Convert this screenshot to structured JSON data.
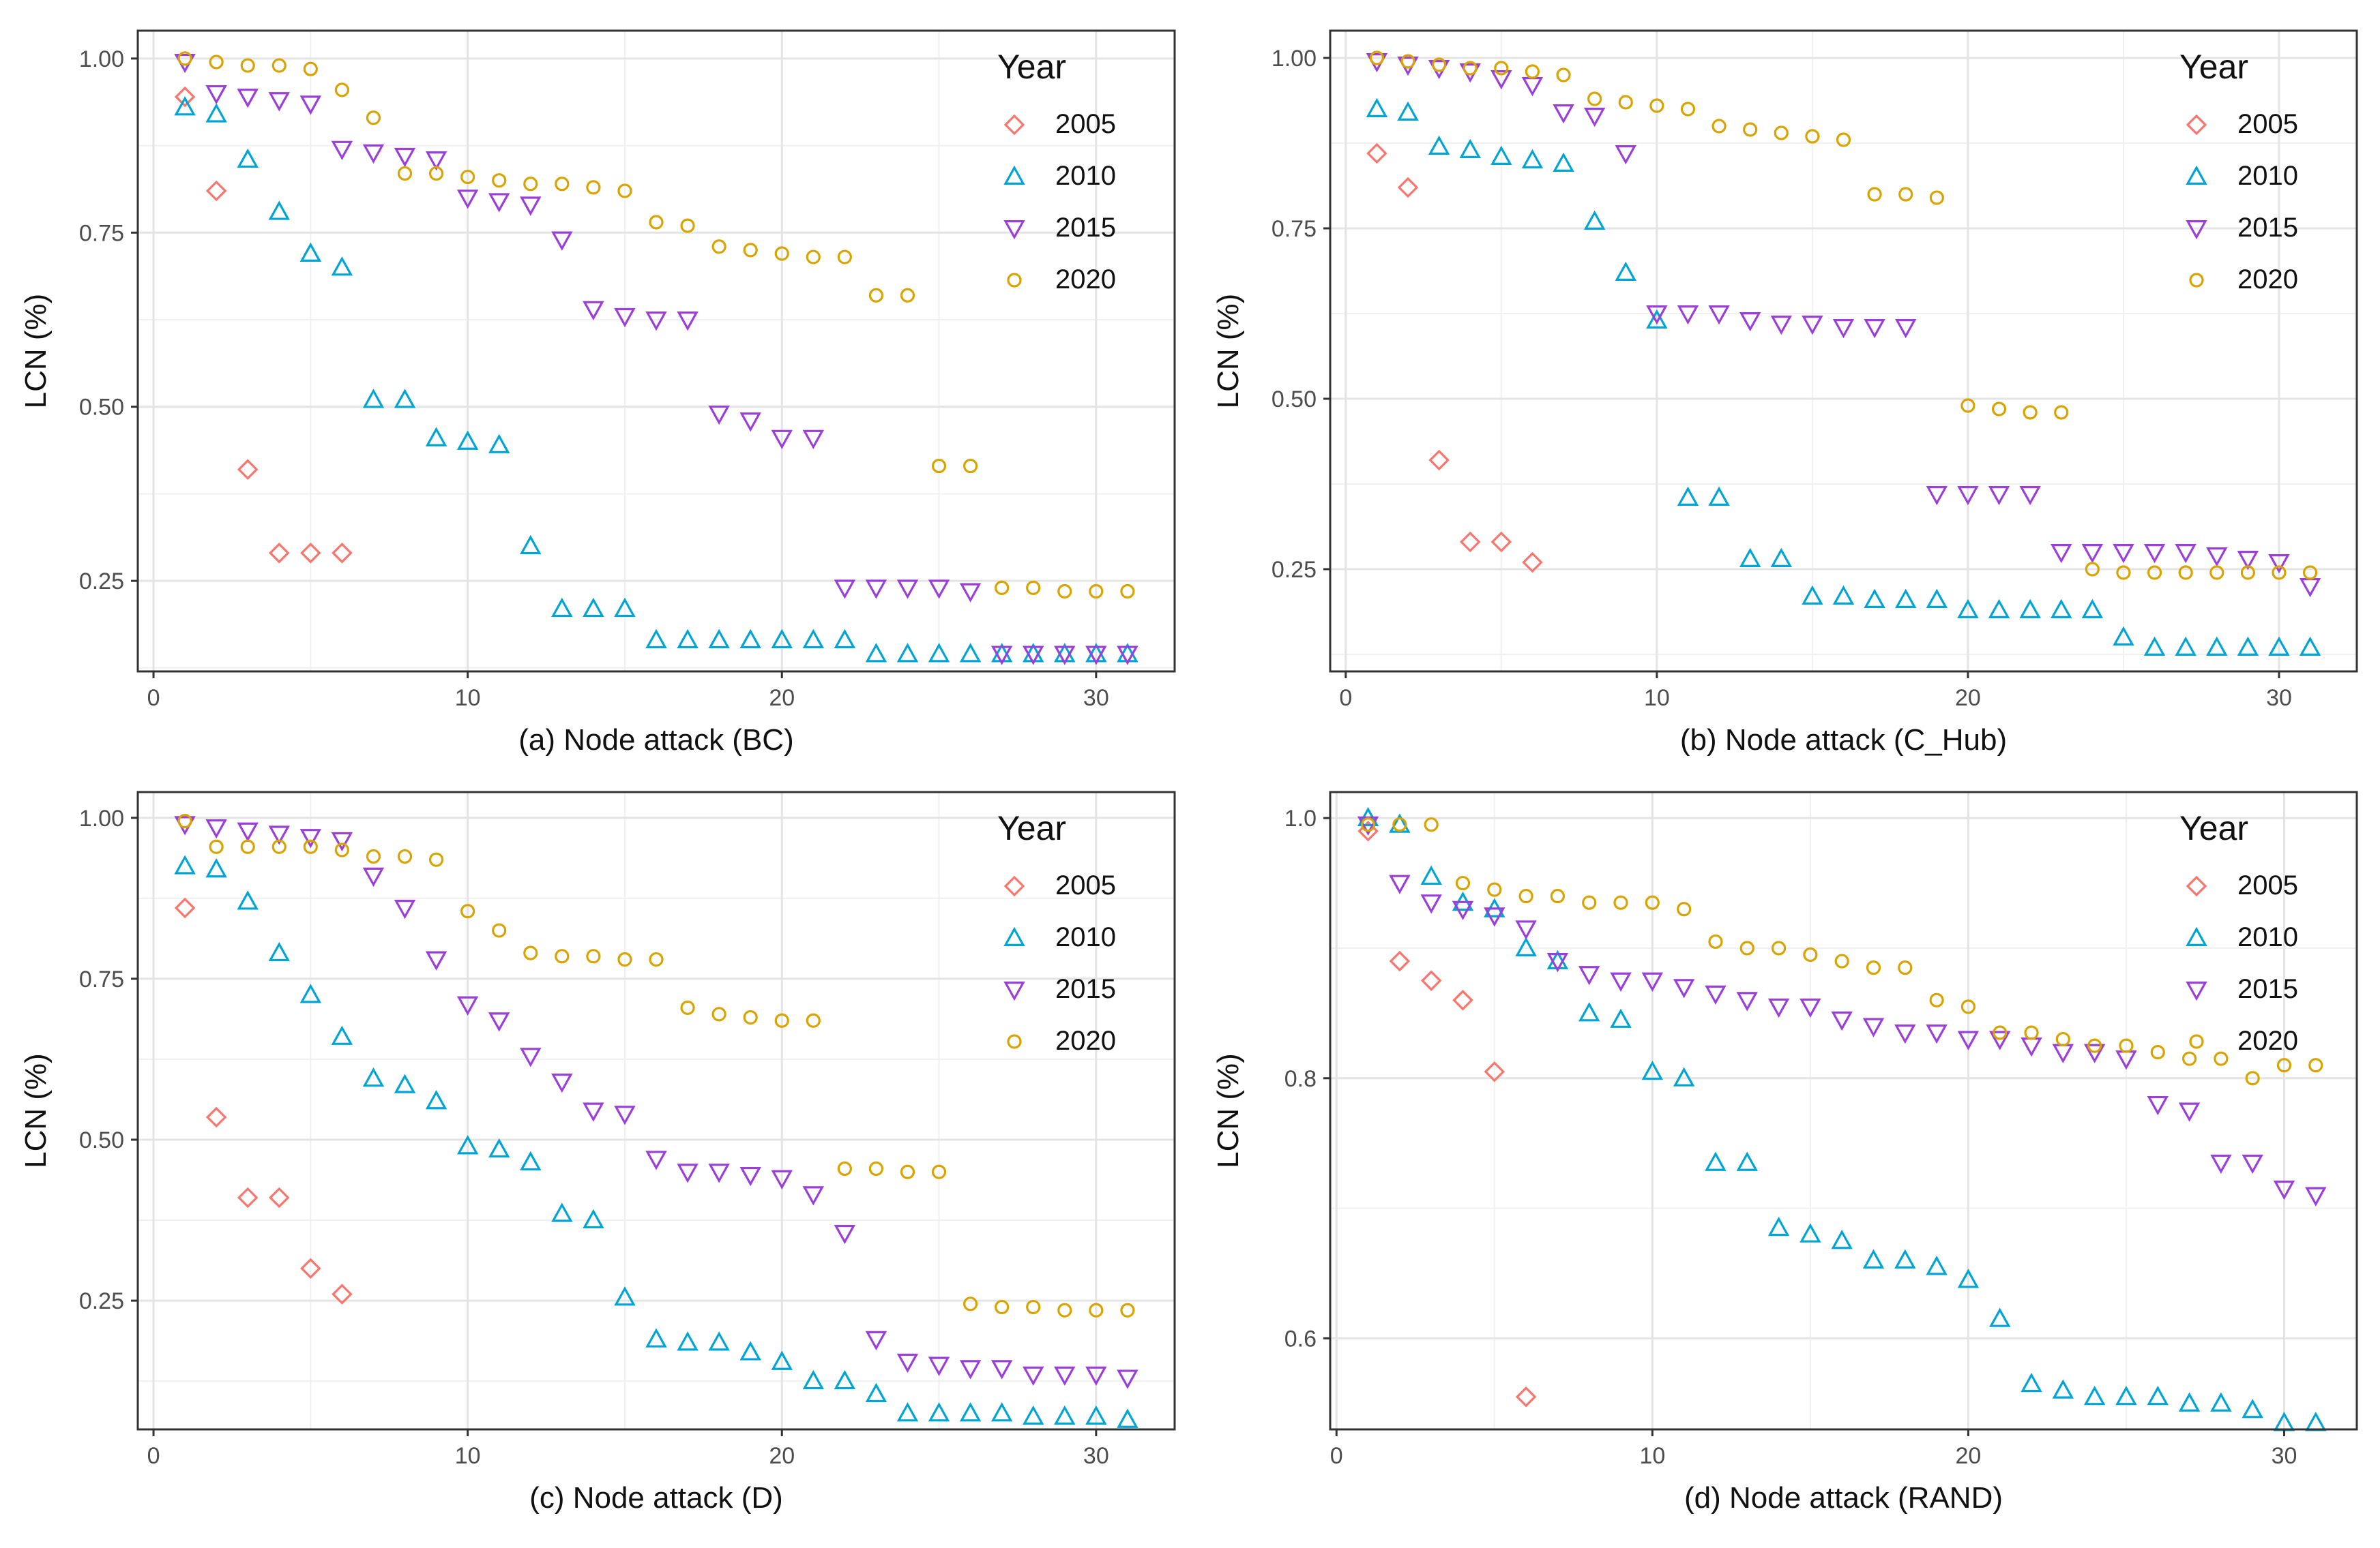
{
  "colors": {
    "2005": "#F8766D",
    "2010": "#00A5D6",
    "2015": "#9A3FD8",
    "2020": "#D9A400"
  },
  "chart_data": [
    {
      "type": "scatter",
      "title": "",
      "xlabel": "(a) Node attack (BC)",
      "ylabel": "LCN (%)",
      "xlim": [
        -0.5,
        32.5
      ],
      "ylim": [
        0.12,
        1.04
      ],
      "xticks": [
        0,
        10,
        20,
        30
      ],
      "xtick_labels": [
        "0",
        "10",
        "20",
        "30"
      ],
      "yticks": [
        0.25,
        0.5,
        0.75,
        1.0
      ],
      "ytick_labels": [
        "0.25",
        "0.50",
        "0.75",
        "1.00"
      ],
      "legend_title": "Year",
      "legend_position": "top-right",
      "series": [
        {
          "name": "2005",
          "shape": "diamond",
          "x": [
            1,
            2,
            3,
            4,
            5,
            6
          ],
          "y": [
            0.945,
            0.81,
            0.41,
            0.29,
            0.29,
            0.29
          ]
        },
        {
          "name": "2010",
          "shape": "triangle-up",
          "x": [
            1,
            2,
            3,
            4,
            5,
            6,
            7,
            8,
            9,
            10,
            11,
            12,
            13,
            14,
            15,
            16,
            17,
            18,
            19,
            20,
            21,
            22,
            23,
            24,
            25,
            26,
            27,
            28,
            29,
            30,
            31
          ],
          "y": [
            0.93,
            0.92,
            0.855,
            0.78,
            0.72,
            0.7,
            0.51,
            0.51,
            0.455,
            0.45,
            0.445,
            0.3,
            0.21,
            0.21,
            0.21,
            0.165,
            0.165,
            0.165,
            0.165,
            0.165,
            0.165,
            0.165,
            0.145,
            0.145,
            0.145,
            0.145,
            0.145,
            0.145,
            0.145,
            0.145,
            0.145
          ]
        },
        {
          "name": "2015",
          "shape": "triangle-down",
          "x": [
            1,
            2,
            3,
            4,
            5,
            6,
            7,
            8,
            9,
            10,
            11,
            12,
            13,
            14,
            15,
            16,
            17,
            18,
            19,
            20,
            21,
            22,
            23,
            24,
            25,
            26,
            27,
            28,
            29,
            30,
            31
          ],
          "y": [
            0.995,
            0.95,
            0.945,
            0.94,
            0.935,
            0.87,
            0.865,
            0.86,
            0.855,
            0.8,
            0.795,
            0.79,
            0.74,
            0.64,
            0.63,
            0.625,
            0.625,
            0.49,
            0.48,
            0.455,
            0.455,
            0.24,
            0.24,
            0.24,
            0.24,
            0.235,
            0.145,
            0.145,
            0.145,
            0.145,
            0.145
          ]
        },
        {
          "name": "2020",
          "shape": "circle",
          "x": [
            1,
            2,
            3,
            4,
            5,
            6,
            7,
            8,
            9,
            10,
            11,
            12,
            13,
            14,
            15,
            16,
            17,
            18,
            19,
            20,
            21,
            22,
            23,
            24,
            25,
            26,
            27,
            28,
            29,
            30,
            31
          ],
          "y": [
            1.0,
            0.995,
            0.99,
            0.99,
            0.985,
            0.955,
            0.915,
            0.835,
            0.835,
            0.83,
            0.825,
            0.82,
            0.82,
            0.815,
            0.81,
            0.765,
            0.76,
            0.73,
            0.725,
            0.72,
            0.715,
            0.715,
            0.66,
            0.66,
            0.415,
            0.415,
            0.24,
            0.24,
            0.235,
            0.235,
            0.235
          ]
        }
      ]
    },
    {
      "type": "scatter",
      "title": "",
      "xlabel": "(b) Node attack (C_Hub)",
      "ylabel": "LCN (%)",
      "xlim": [
        -0.5,
        32.5
      ],
      "ylim": [
        0.1,
        1.04
      ],
      "xticks": [
        0,
        10,
        20,
        30
      ],
      "xtick_labels": [
        "0",
        "10",
        "20",
        "30"
      ],
      "yticks": [
        0.25,
        0.5,
        0.75,
        1.0
      ],
      "ytick_labels": [
        "0.25",
        "0.50",
        "0.75",
        "1.00"
      ],
      "legend_title": "Year",
      "legend_position": "top-right",
      "series": [
        {
          "name": "2005",
          "shape": "diamond",
          "x": [
            1,
            2,
            3,
            4,
            5,
            6
          ],
          "y": [
            0.86,
            0.81,
            0.41,
            0.29,
            0.29,
            0.26
          ]
        },
        {
          "name": "2010",
          "shape": "triangle-up",
          "x": [
            1,
            2,
            3,
            4,
            5,
            6,
            7,
            8,
            9,
            10,
            11,
            12,
            13,
            14,
            15,
            16,
            17,
            18,
            19,
            20,
            21,
            22,
            23,
            24,
            25,
            26,
            27,
            28,
            29,
            30,
            31
          ],
          "y": [
            0.925,
            0.92,
            0.87,
            0.865,
            0.855,
            0.85,
            0.845,
            0.76,
            0.685,
            0.615,
            0.355,
            0.355,
            0.265,
            0.265,
            0.21,
            0.21,
            0.205,
            0.205,
            0.205,
            0.19,
            0.19,
            0.19,
            0.19,
            0.19,
            0.15,
            0.135,
            0.135,
            0.135,
            0.135,
            0.135,
            0.135
          ]
        },
        {
          "name": "2015",
          "shape": "triangle-down",
          "x": [
            1,
            2,
            3,
            4,
            5,
            6,
            7,
            8,
            9,
            10,
            11,
            12,
            13,
            14,
            15,
            16,
            17,
            18,
            19,
            20,
            21,
            22,
            23,
            24,
            25,
            26,
            27,
            28,
            29,
            30,
            31
          ],
          "y": [
            0.995,
            0.99,
            0.985,
            0.98,
            0.97,
            0.96,
            0.92,
            0.915,
            0.86,
            0.625,
            0.625,
            0.625,
            0.615,
            0.61,
            0.61,
            0.605,
            0.605,
            0.605,
            0.36,
            0.36,
            0.36,
            0.36,
            0.275,
            0.275,
            0.275,
            0.275,
            0.275,
            0.27,
            0.265,
            0.26,
            0.225
          ]
        },
        {
          "name": "2020",
          "shape": "circle",
          "x": [
            1,
            2,
            3,
            4,
            5,
            6,
            7,
            8,
            9,
            10,
            11,
            12,
            13,
            14,
            15,
            16,
            17,
            18,
            19,
            20,
            21,
            22,
            23,
            24,
            25,
            26,
            27,
            28,
            29,
            30,
            31
          ],
          "y": [
            1.0,
            0.995,
            0.99,
            0.985,
            0.985,
            0.98,
            0.975,
            0.94,
            0.935,
            0.93,
            0.925,
            0.9,
            0.895,
            0.89,
            0.885,
            0.88,
            0.8,
            0.8,
            0.795,
            0.49,
            0.485,
            0.48,
            0.48,
            0.25,
            0.245,
            0.245,
            0.245,
            0.245,
            0.245,
            0.245,
            0.245
          ]
        }
      ]
    },
    {
      "type": "scatter",
      "title": "",
      "xlabel": "(c) Node attack (D)",
      "ylabel": "LCN (%)",
      "xlim": [
        -0.5,
        32.5
      ],
      "ylim": [
        0.05,
        1.04
      ],
      "xticks": [
        0,
        10,
        20,
        30
      ],
      "xtick_labels": [
        "0",
        "10",
        "20",
        "30"
      ],
      "yticks": [
        0.25,
        0.5,
        0.75,
        1.0
      ],
      "ytick_labels": [
        "0.25",
        "0.50",
        "0.75",
        "1.00"
      ],
      "legend_title": "Year",
      "legend_position": "top-right",
      "series": [
        {
          "name": "2005",
          "shape": "diamond",
          "x": [
            1,
            2,
            3,
            4,
            5,
            6
          ],
          "y": [
            0.86,
            0.535,
            0.41,
            0.41,
            0.3,
            0.26
          ]
        },
        {
          "name": "2010",
          "shape": "triangle-up",
          "x": [
            1,
            2,
            3,
            4,
            5,
            6,
            7,
            8,
            9,
            10,
            11,
            12,
            13,
            14,
            15,
            16,
            17,
            18,
            19,
            20,
            21,
            22,
            23,
            24,
            25,
            26,
            27,
            28,
            29,
            30,
            31
          ],
          "y": [
            0.925,
            0.92,
            0.87,
            0.79,
            0.725,
            0.66,
            0.595,
            0.585,
            0.56,
            0.49,
            0.485,
            0.465,
            0.385,
            0.375,
            0.255,
            0.19,
            0.185,
            0.185,
            0.17,
            0.155,
            0.125,
            0.125,
            0.105,
            0.075,
            0.075,
            0.075,
            0.075,
            0.07,
            0.07,
            0.07,
            0.065
          ]
        },
        {
          "name": "2015",
          "shape": "triangle-down",
          "x": [
            1,
            2,
            3,
            4,
            5,
            6,
            7,
            8,
            9,
            10,
            11,
            12,
            13,
            14,
            15,
            16,
            17,
            18,
            19,
            20,
            21,
            22,
            23,
            24,
            25,
            26,
            27,
            28,
            29,
            30,
            31
          ],
          "y": [
            0.99,
            0.985,
            0.98,
            0.975,
            0.97,
            0.965,
            0.91,
            0.86,
            0.78,
            0.71,
            0.685,
            0.63,
            0.59,
            0.545,
            0.54,
            0.47,
            0.45,
            0.45,
            0.445,
            0.44,
            0.415,
            0.355,
            0.19,
            0.155,
            0.15,
            0.145,
            0.145,
            0.135,
            0.135,
            0.135,
            0.13
          ]
        },
        {
          "name": "2020",
          "shape": "circle",
          "x": [
            1,
            2,
            3,
            4,
            5,
            6,
            7,
            8,
            9,
            10,
            11,
            12,
            13,
            14,
            15,
            16,
            17,
            18,
            19,
            20,
            21,
            22,
            23,
            24,
            25,
            26,
            27,
            28,
            29,
            30,
            31
          ],
          "y": [
            0.995,
            0.955,
            0.955,
            0.955,
            0.955,
            0.95,
            0.94,
            0.94,
            0.935,
            0.855,
            0.825,
            0.79,
            0.785,
            0.785,
            0.78,
            0.78,
            0.705,
            0.695,
            0.69,
            0.685,
            0.685,
            0.455,
            0.455,
            0.45,
            0.45,
            0.245,
            0.24,
            0.24,
            0.235,
            0.235,
            0.235
          ]
        }
      ]
    },
    {
      "type": "scatter",
      "title": "",
      "xlabel": "(d) Node attack (RAND)",
      "ylabel": "LCN (%)",
      "xlim": [
        -0.2,
        32.3
      ],
      "ylim": [
        0.53,
        1.02
      ],
      "xticks": [
        0,
        10,
        20,
        30
      ],
      "xtick_labels": [
        "0",
        "10",
        "20",
        "30"
      ],
      "yticks": [
        0.6,
        0.8,
        1.0
      ],
      "ytick_labels": [
        "0.6",
        "0.8",
        "1.0"
      ],
      "legend_title": "Year",
      "legend_position": "top-right",
      "series": [
        {
          "name": "2005",
          "shape": "diamond",
          "x": [
            1,
            2,
            3,
            4,
            5,
            6
          ],
          "y": [
            0.99,
            0.89,
            0.875,
            0.86,
            0.805,
            0.555
          ]
        },
        {
          "name": "2010",
          "shape": "triangle-up",
          "x": [
            1,
            2,
            3,
            4,
            5,
            6,
            7,
            8,
            9,
            10,
            11,
            12,
            13,
            14,
            15,
            16,
            17,
            18,
            19,
            20,
            21,
            22,
            23,
            24,
            25,
            26,
            27,
            28,
            29,
            30,
            31
          ],
          "y": [
            1.0,
            0.995,
            0.955,
            0.935,
            0.93,
            0.9,
            0.89,
            0.85,
            0.845,
            0.805,
            0.8,
            0.735,
            0.735,
            0.685,
            0.68,
            0.675,
            0.66,
            0.66,
            0.655,
            0.645,
            0.615,
            0.565,
            0.56,
            0.555,
            0.555,
            0.555,
            0.55,
            0.55,
            0.545,
            0.535,
            0.535
          ]
        },
        {
          "name": "2015",
          "shape": "triangle-down",
          "x": [
            1,
            2,
            3,
            4,
            5,
            6,
            7,
            8,
            9,
            10,
            11,
            12,
            13,
            14,
            15,
            16,
            17,
            18,
            19,
            20,
            21,
            22,
            23,
            24,
            25,
            26,
            27,
            28,
            29,
            30,
            31
          ],
          "y": [
            0.995,
            0.95,
            0.935,
            0.93,
            0.925,
            0.915,
            0.89,
            0.88,
            0.875,
            0.875,
            0.87,
            0.865,
            0.86,
            0.855,
            0.855,
            0.845,
            0.84,
            0.835,
            0.835,
            0.83,
            0.83,
            0.825,
            0.82,
            0.82,
            0.815,
            0.78,
            0.775,
            0.735,
            0.735,
            0.715,
            0.71
          ]
        },
        {
          "name": "2020",
          "shape": "circle",
          "x": [
            1,
            2,
            3,
            4,
            5,
            6,
            7,
            8,
            9,
            10,
            11,
            12,
            13,
            14,
            15,
            16,
            17,
            18,
            19,
            20,
            21,
            22,
            23,
            24,
            25,
            26,
            27,
            28,
            29,
            30,
            31
          ],
          "y": [
            0.995,
            0.995,
            0.995,
            0.95,
            0.945,
            0.94,
            0.94,
            0.935,
            0.935,
            0.935,
            0.93,
            0.905,
            0.9,
            0.9,
            0.895,
            0.89,
            0.885,
            0.885,
            0.86,
            0.855,
            0.835,
            0.835,
            0.83,
            0.825,
            0.825,
            0.82,
            0.815,
            0.815,
            0.8,
            0.81,
            0.81
          ]
        }
      ]
    }
  ]
}
